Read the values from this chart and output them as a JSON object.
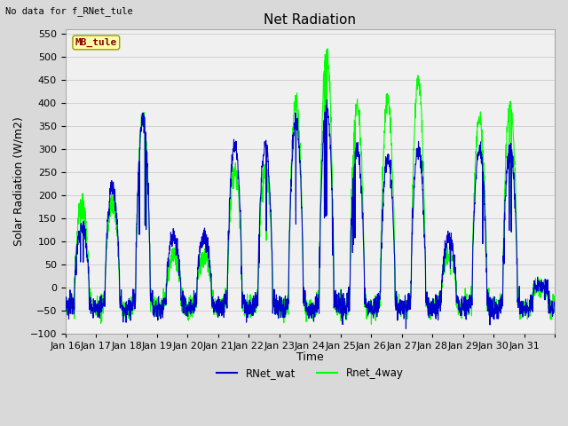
{
  "title": "Net Radiation",
  "ylabel": "Solar Radiation (W/m2)",
  "xlabel": "Time",
  "no_data_text": "No data for f_RNet_tule",
  "mb_tule_label": "MB_tule",
  "ylim": [
    -100,
    560
  ],
  "yticks": [
    -100,
    -50,
    0,
    50,
    100,
    150,
    200,
    250,
    300,
    350,
    400,
    450,
    500,
    550
  ],
  "xtick_labels": [
    "Jan 16",
    "Jan 17",
    "Jan 18",
    "Jan 19",
    "Jan 20",
    "Jan 21",
    "Jan 22",
    "Jan 23",
    "Jan 24",
    "Jan 25",
    "Jan 26",
    "Jan 27",
    "Jan 28",
    "Jan 29",
    "Jan 30",
    "Jan 31"
  ],
  "line1_color": "#0000cc",
  "line2_color": "#00ff00",
  "line1_label": "RNet_wat",
  "line2_label": "Rnet_4way",
  "fig_facecolor": "#d9d9d9",
  "plot_facecolor": "#f0f0f0",
  "grid_color": "#cccccc",
  "title_fontsize": 11,
  "label_fontsize": 9,
  "tick_fontsize": 8,
  "n_days": 16,
  "pts_per_day": 144,
  "day_peak_blue": [
    130,
    220,
    365,
    110,
    110,
    310,
    310,
    360,
    395,
    300,
    280,
    300,
    105,
    300,
    305,
    0
  ],
  "day_peak_green": [
    175,
    180,
    370,
    70,
    65,
    255,
    255,
    405,
    510,
    395,
    410,
    445,
    75,
    370,
    395,
    0
  ],
  "night_base": -30,
  "seed": 12345
}
